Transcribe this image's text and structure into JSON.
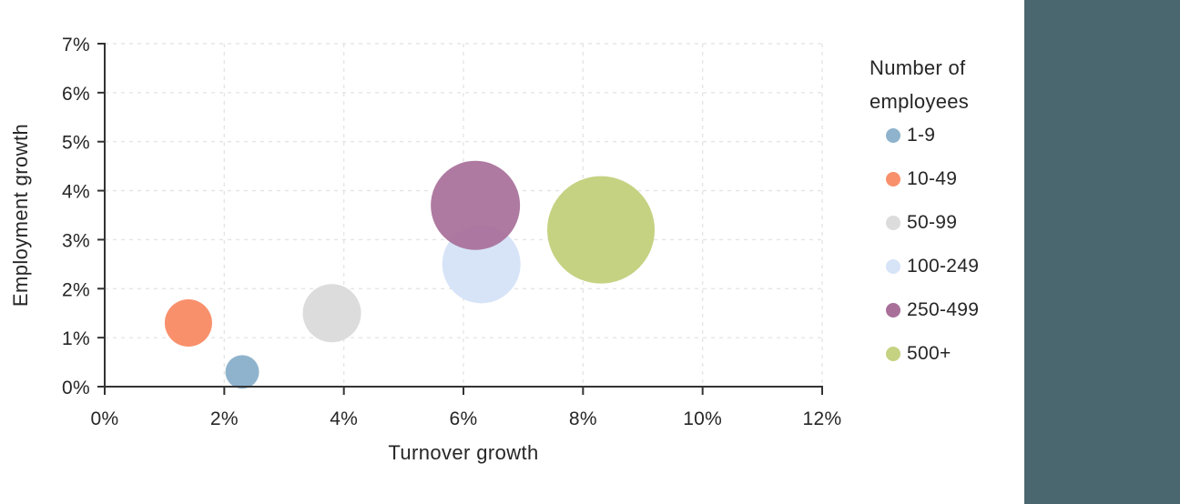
{
  "page": {
    "background_color": "#FFFFFF"
  },
  "sidebar": {
    "color": "#4A666E"
  },
  "legend": {
    "title_lines": [
      "Number of",
      "employees"
    ]
  },
  "chart_data": {
    "type": "scatter",
    "subtype": "bubble",
    "title": "",
    "xlabel": "Turnover growth",
    "ylabel": "Employment growth",
    "xlim": [
      0,
      12
    ],
    "ylim": [
      0,
      7
    ],
    "x_ticks": [
      0,
      2,
      4,
      6,
      8,
      10,
      12
    ],
    "y_ticks": [
      0,
      1,
      2,
      3,
      4,
      5,
      6,
      7
    ],
    "tick_format": "percent",
    "grid": {
      "show": true,
      "style": "dashed",
      "color": "#E5E5E5"
    },
    "axis_color": "#333333",
    "text_color": "#262626",
    "legend_title": "Number of employees",
    "legend_position": "right",
    "series": [
      {
        "name": "1-9",
        "x": 2.3,
        "y": 0.3,
        "radius_px": 18.5,
        "color": "#8FB3CD",
        "opacity": 1
      },
      {
        "name": "10-49",
        "x": 1.4,
        "y": 1.3,
        "radius_px": 26,
        "color": "#F9906C",
        "opacity": 1
      },
      {
        "name": "50-99",
        "x": 3.8,
        "y": 1.5,
        "radius_px": 32,
        "color": "#DCDCDC",
        "opacity": 1
      },
      {
        "name": "100-249",
        "x": 6.3,
        "y": 2.5,
        "radius_px": 43,
        "color": "#D7E4F8",
        "opacity": 1
      },
      {
        "name": "250-499",
        "x": 6.2,
        "y": 3.7,
        "radius_px": 49,
        "color": "#A86F99",
        "opacity": 0.92
      },
      {
        "name": "500+",
        "x": 8.3,
        "y": 3.2,
        "radius_px": 59,
        "color": "#C5D282",
        "opacity": 1
      }
    ]
  }
}
